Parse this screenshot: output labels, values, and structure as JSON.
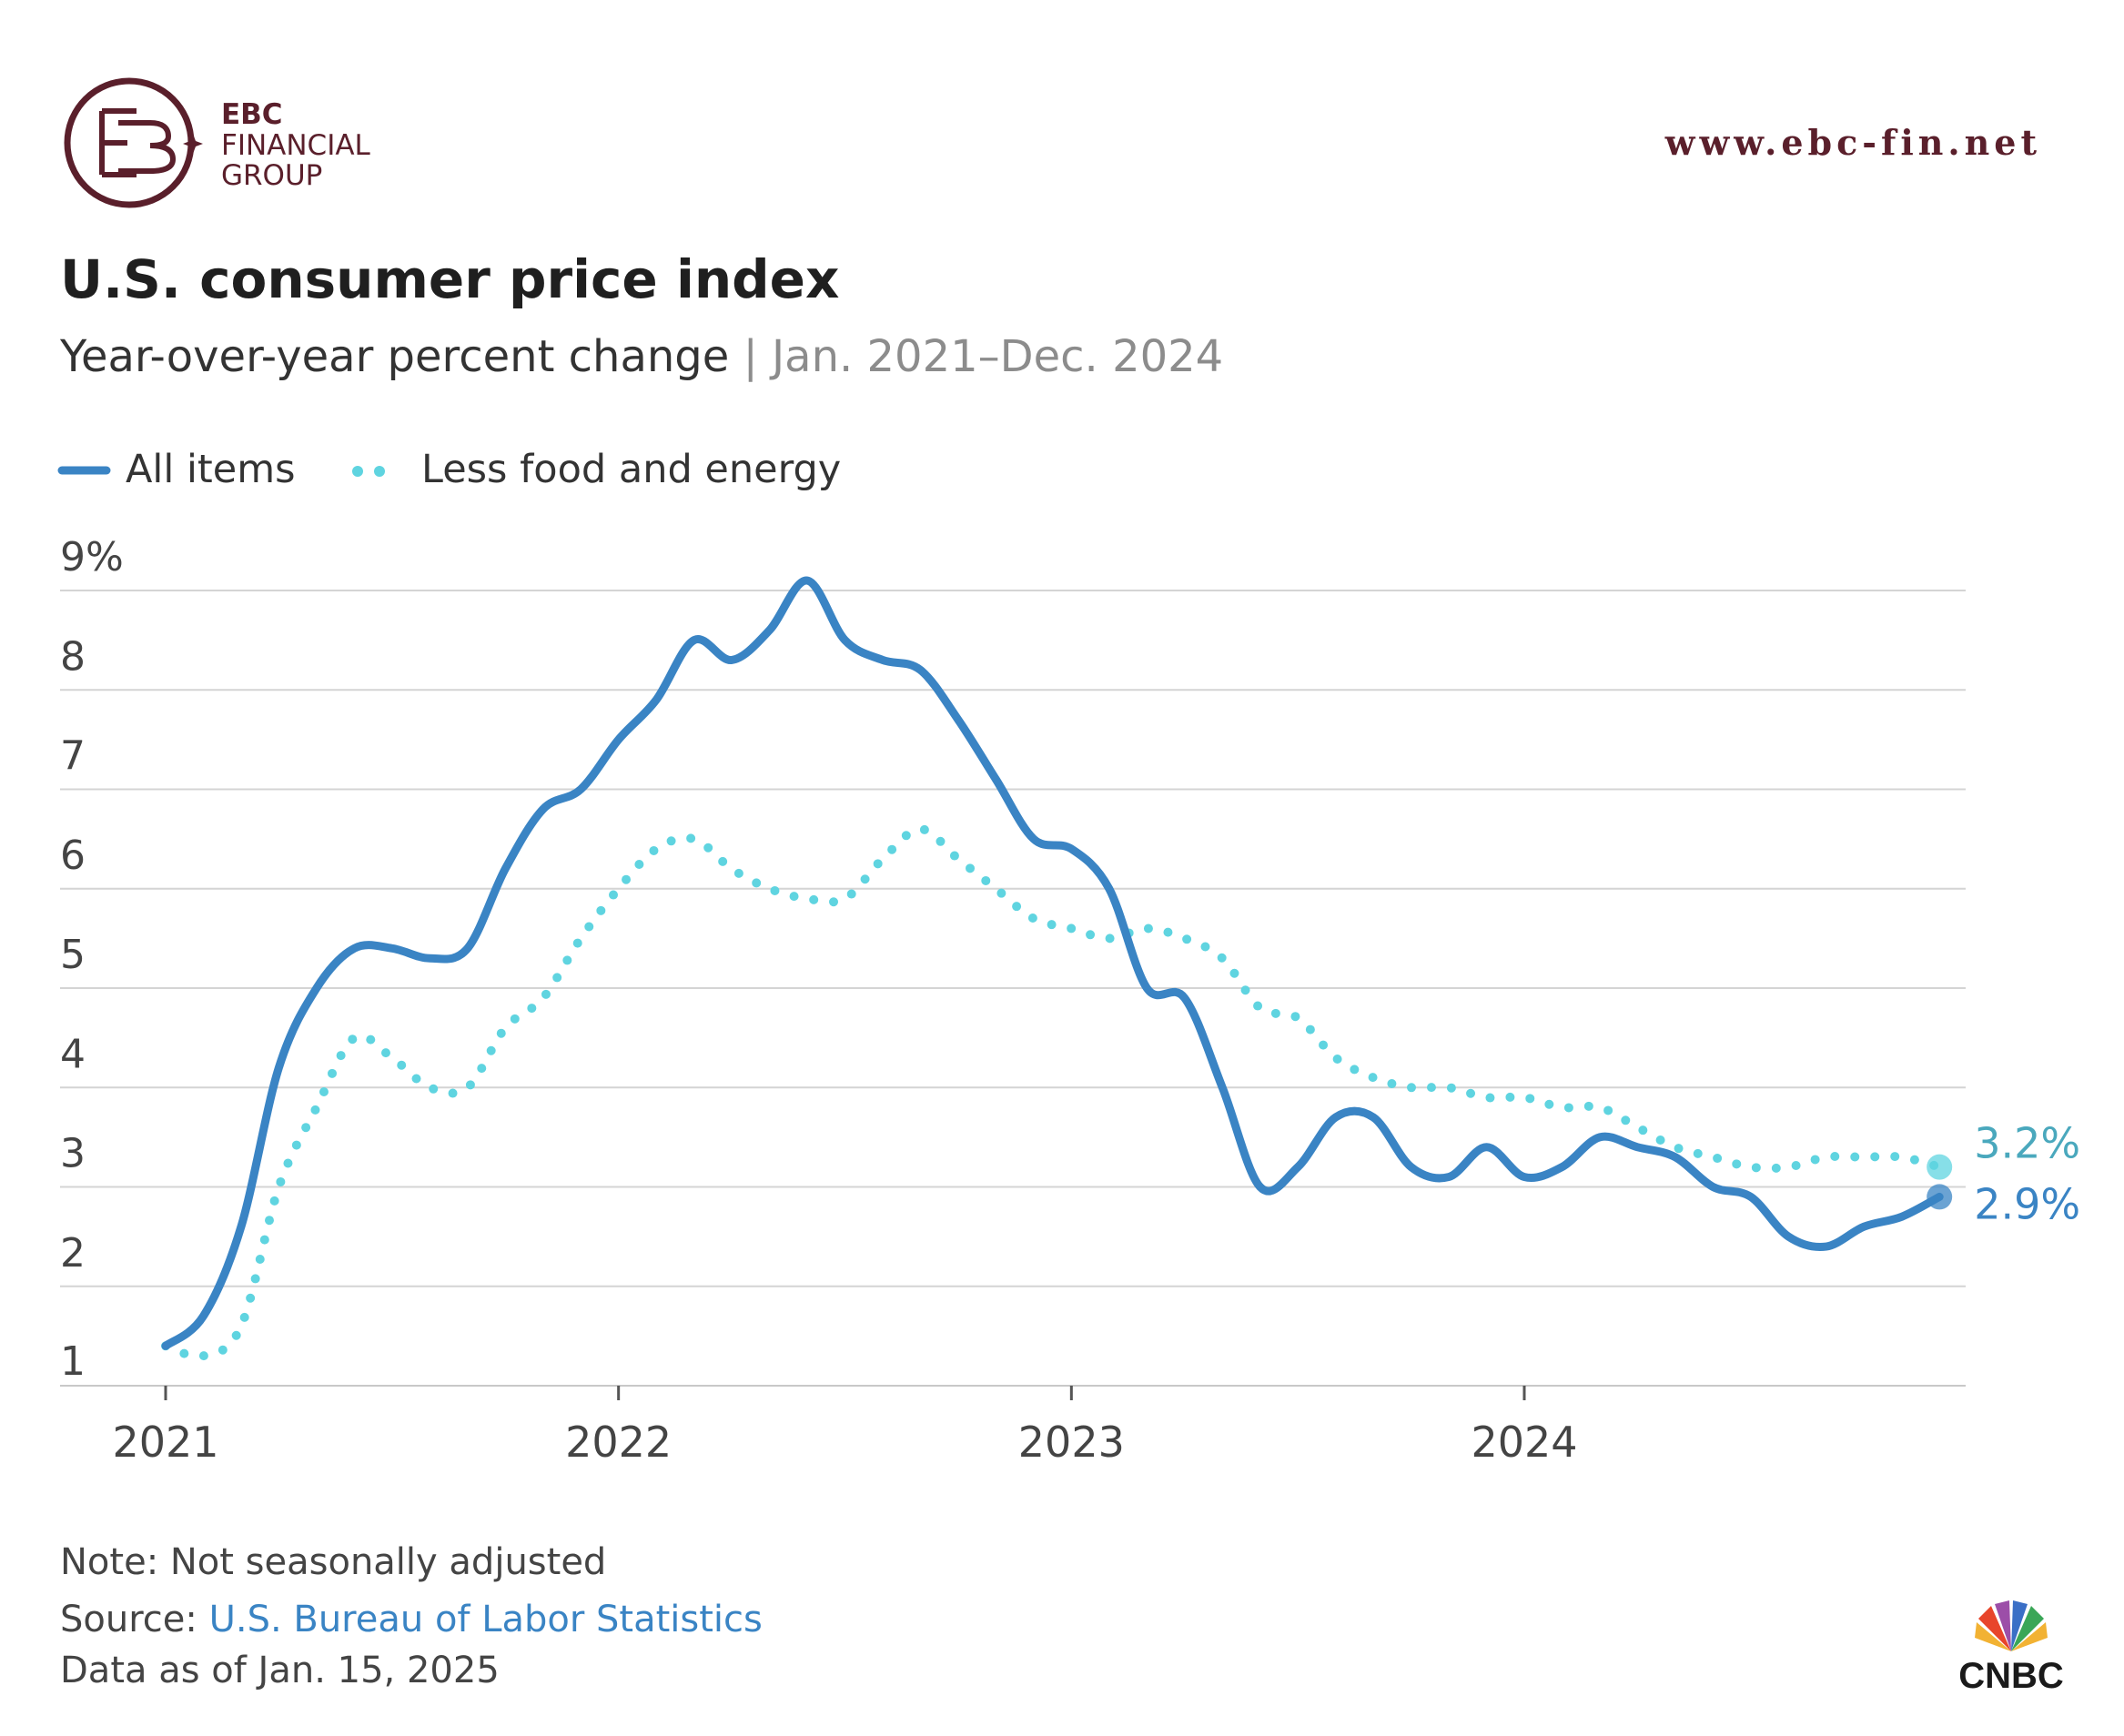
{
  "branding": {
    "logo_line1": "EBC",
    "logo_line2": "FINANCIAL",
    "logo_line3": "GROUP",
    "website": "www.ebc-fin.net",
    "publisher": "CNBC",
    "brand_color": "#5a1f2b"
  },
  "header": {
    "title": "U.S. consumer price index",
    "subtitle": "Year-over-year percent change",
    "separator": " | ",
    "range": "Jan. 2021–Dec. 2024"
  },
  "footer": {
    "note": "Note: Not seasonally adjusted",
    "source_prefix": "Source: ",
    "source_link": "U.S. Bureau of Labor Statistics",
    "data_as_of": "Data as of Jan. 15, 2025"
  },
  "chart_data": {
    "type": "line",
    "title": "U.S. consumer price index",
    "subtitle": "Year-over-year percent change | Jan. 2021–Dec. 2024",
    "xlabel": "",
    "ylabel": "",
    "x_ticks": [
      "2021",
      "2022",
      "2023",
      "2024"
    ],
    "y_ticks": [
      "1",
      "2",
      "3",
      "4",
      "5",
      "6",
      "7",
      "8",
      "9%"
    ],
    "ylim": [
      1,
      9
    ],
    "grid": true,
    "legend_position": "top-left",
    "months": [
      "Jan 2021",
      "Feb 2021",
      "Mar 2021",
      "Apr 2021",
      "May 2021",
      "Jun 2021",
      "Jul 2021",
      "Aug 2021",
      "Sep 2021",
      "Oct 2021",
      "Nov 2021",
      "Dec 2021",
      "Jan 2022",
      "Feb 2022",
      "Mar 2022",
      "Apr 2022",
      "May 2022",
      "Jun 2022",
      "Jul 2022",
      "Aug 2022",
      "Sep 2022",
      "Oct 2022",
      "Nov 2022",
      "Dec 2022",
      "Jan 2023",
      "Feb 2023",
      "Mar 2023",
      "Apr 2023",
      "May 2023",
      "Jun 2023",
      "Jul 2023",
      "Aug 2023",
      "Sep 2023",
      "Oct 2023",
      "Nov 2023",
      "Dec 2023",
      "Jan 2024",
      "Feb 2024",
      "Mar 2024",
      "Apr 2024",
      "May 2024",
      "Jun 2024",
      "Jul 2024",
      "Aug 2024",
      "Sep 2024",
      "Oct 2024",
      "Nov 2024",
      "Dec 2024"
    ],
    "series": [
      {
        "name": "All items",
        "style": "solid",
        "color": "#3a84c4",
        "end_label": "2.9%",
        "values": [
          1.4,
          1.7,
          2.6,
          4.2,
          5.0,
          5.4,
          5.4,
          5.3,
          5.4,
          6.2,
          6.8,
          7.0,
          7.5,
          7.9,
          8.5,
          8.3,
          8.6,
          9.1,
          8.5,
          8.3,
          8.2,
          7.7,
          7.1,
          6.5,
          6.4,
          6.0,
          5.0,
          4.9,
          4.0,
          3.0,
          3.2,
          3.7,
          3.7,
          3.2,
          3.1,
          3.4,
          3.1,
          3.2,
          3.5,
          3.4,
          3.3,
          3.0,
          2.9,
          2.5,
          2.4,
          2.6,
          2.7,
          2.9
        ]
      },
      {
        "name": "Less food and energy",
        "style": "dotted",
        "color": "#5fd4e0",
        "end_label": "3.2%",
        "values": [
          1.4,
          1.3,
          1.6,
          3.0,
          3.8,
          4.5,
          4.3,
          4.0,
          4.0,
          4.6,
          4.9,
          5.5,
          6.0,
          6.4,
          6.5,
          6.2,
          6.0,
          5.9,
          5.9,
          6.3,
          6.6,
          6.3,
          6.0,
          5.7,
          5.6,
          5.5,
          5.6,
          5.5,
          5.3,
          4.8,
          4.7,
          4.3,
          4.1,
          4.0,
          4.0,
          3.9,
          3.9,
          3.8,
          3.8,
          3.6,
          3.4,
          3.3,
          3.2,
          3.2,
          3.3,
          3.3,
          3.3,
          3.2
        ]
      }
    ]
  }
}
